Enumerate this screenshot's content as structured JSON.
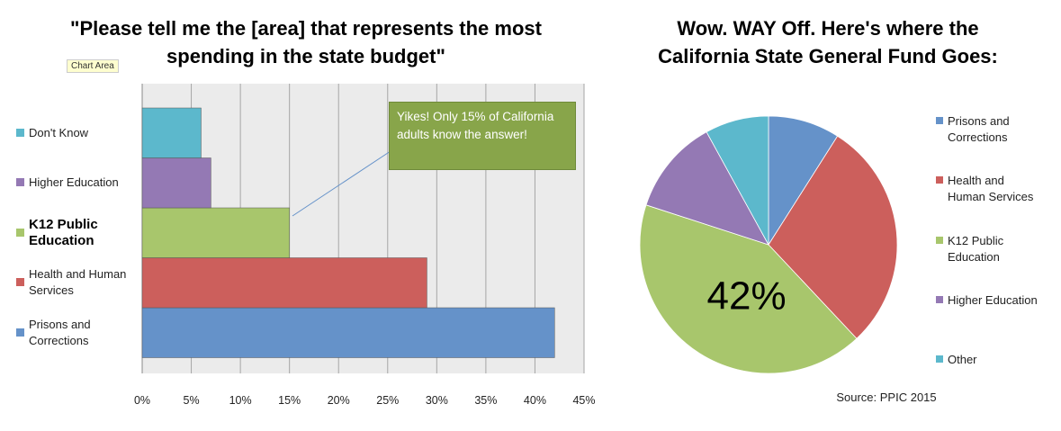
{
  "tooltip": "Chart Area",
  "chart_data": [
    {
      "type": "bar",
      "title": "\"Please tell me the [area] that represents the most spending in the state budget\"",
      "categories": [
        "Prisons and Corrections",
        "Health and Human Services",
        "K12 Public Education",
        "Higher Education",
        "Don't Know"
      ],
      "values": [
        42,
        29,
        15,
        7,
        6
      ],
      "colors": [
        "#6592c9",
        "#cc5f5c",
        "#a8c66c",
        "#9479b4",
        "#5cb8cc"
      ],
      "xlim": [
        0,
        45
      ],
      "xticks": [
        {
          "value": 0,
          "label": "0%"
        },
        {
          "value": 5,
          "label": "5%"
        },
        {
          "value": 10,
          "label": "10%"
        },
        {
          "value": 15,
          "label": "15%"
        },
        {
          "value": 20,
          "label": "20%"
        },
        {
          "value": 25,
          "label": "25%"
        },
        {
          "value": 30,
          "label": "30%"
        },
        {
          "value": 35,
          "label": "35%"
        },
        {
          "value": 40,
          "label": "40%"
        },
        {
          "value": 45,
          "label": "45%"
        }
      ],
      "grid": true,
      "annotation": "Yikes! Only 15% of California adults know the answer!"
    },
    {
      "type": "pie",
      "title": "Wow. WAY Off. Here's where the California State General Fund Goes:",
      "categories": [
        "Prisons and Corrections",
        "Health and Human Services",
        "K12 Public Education",
        "Higher Education",
        "Other"
      ],
      "values": [
        9,
        29,
        42,
        12,
        8
      ],
      "value_labels": [
        null,
        null,
        "42%",
        null,
        null
      ],
      "colors": [
        "#6592c9",
        "#cc5f5c",
        "#a8c66c",
        "#9479b4",
        "#5cb8cc"
      ],
      "legend": "right",
      "source": "Source: PPIC 2015"
    }
  ]
}
